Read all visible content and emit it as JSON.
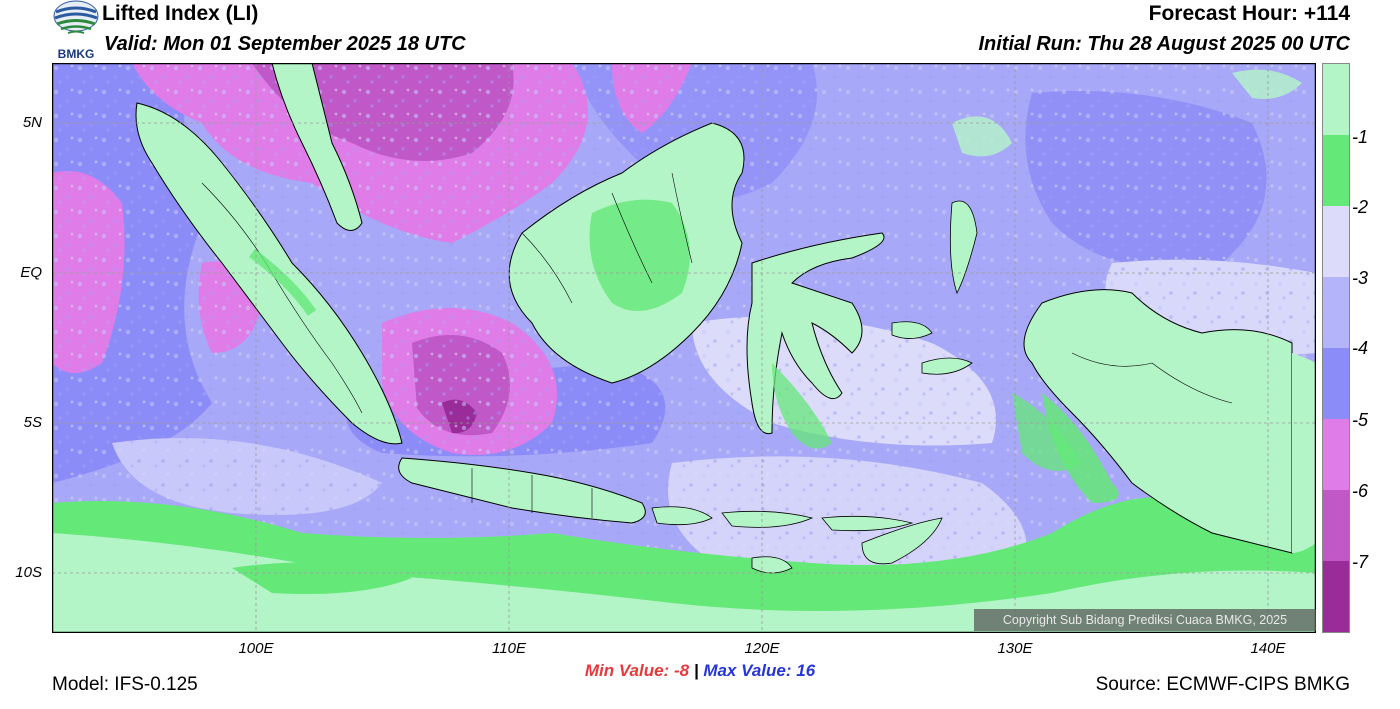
{
  "header": {
    "title": "Lifted Index (LI)",
    "valid": "Valid: Mon 01 September 2025 18 UTC",
    "forecast_hour": "Forecast Hour: +114",
    "initial_run": "Initial Run: Thu 28 August 2025 00 UTC"
  },
  "logo": {
    "text": "BMKG"
  },
  "map": {
    "lat_labels": [
      "5N",
      "EQ",
      "5S",
      "10S"
    ],
    "lon_labels": [
      "100E",
      "110E",
      "120E",
      "130E",
      "140E"
    ],
    "copyright": "Copyright Sub Bidang Prediksi Cuaca BMKG, 2025"
  },
  "colorbar": {
    "labels": [
      "-1",
      "-2",
      "-3",
      "-4",
      "-5",
      "-6",
      "-7"
    ],
    "colors": [
      "#b4f5c8",
      "#64e878",
      "#dcdcfa",
      "#b4b4fa",
      "#8c8cf8",
      "#e07ce8",
      "#c058c8",
      "#9a2c9a"
    ]
  },
  "stats": {
    "min_label": "Min Value:",
    "min_value": "-8",
    "separator": "|",
    "max_label": "Max Value:",
    "max_value": "16"
  },
  "footer": {
    "model": "Model: IFS-0.125",
    "source": "Source: ECMWF-CIPS BMKG"
  }
}
